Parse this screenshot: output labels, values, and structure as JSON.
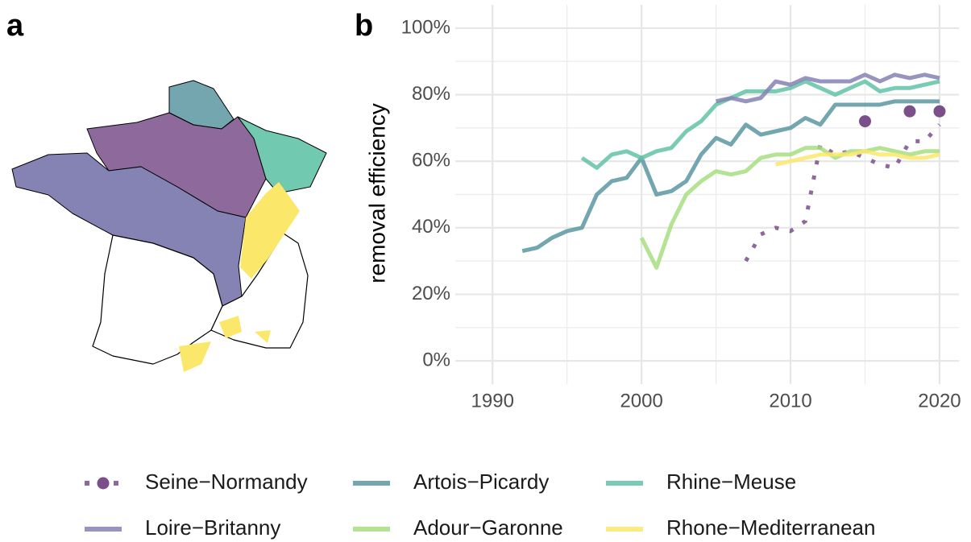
{
  "map_panel": {
    "label": "a"
  },
  "chart_data": {
    "type": "line",
    "panel_label": "b",
    "y_label": "removal efficiency",
    "xlim": [
      1987.5,
      2021.3
    ],
    "xticks": [
      1990,
      2000,
      2010,
      2020
    ],
    "ylim": [
      -7,
      107
    ],
    "yticks": [
      {
        "value": 0,
        "label": "0%"
      },
      {
        "value": 20,
        "label": "20%"
      },
      {
        "value": 40,
        "label": "40%"
      },
      {
        "value": 60,
        "label": "60%"
      },
      {
        "value": 80,
        "label": "80%"
      },
      {
        "value": 100,
        "label": "100%"
      }
    ],
    "grid": true,
    "series": [
      {
        "name": "Seine−Normandy",
        "color": "#7a4f8a",
        "dash": "dotted",
        "x": [
          2007,
          2008,
          2009,
          2010,
          2011,
          2012,
          2013,
          2014,
          2015,
          2016,
          2017,
          2018,
          2019,
          2020
        ],
        "values": [
          30,
          38,
          40,
          39,
          42,
          65,
          62,
          63,
          61,
          59,
          58,
          66,
          66,
          71
        ],
        "point_x": [
          2015,
          2018,
          2020
        ],
        "point_values": [
          72,
          75,
          75
        ]
      },
      {
        "name": "Artois−Picardy",
        "color": "#5a96a0",
        "dash": "solid",
        "x": [
          1992,
          1993,
          1994,
          1995,
          1996,
          1997,
          1998,
          1999,
          2000,
          2001,
          2002,
          2003,
          2004,
          2005,
          2006,
          2007,
          2008,
          2009,
          2010,
          2011,
          2012,
          2013,
          2014,
          2015,
          2016,
          2017,
          2018,
          2019,
          2020
        ],
        "values": [
          33,
          34,
          37,
          39,
          40,
          50,
          54,
          55,
          61,
          50,
          51,
          54,
          62,
          67,
          65,
          71,
          68,
          69,
          70,
          73,
          71,
          77,
          77,
          77,
          77,
          78,
          78,
          78,
          78
        ]
      },
      {
        "name": "Rhine−Meuse",
        "color": "#62c3a6",
        "dash": "solid",
        "x": [
          1996,
          1997,
          1998,
          1999,
          2000,
          2001,
          2002,
          2003,
          2004,
          2005,
          2006,
          2007,
          2008,
          2009,
          2010,
          2011,
          2012,
          2013,
          2014,
          2015,
          2016,
          2017,
          2018,
          2019,
          2020
        ],
        "values": [
          61,
          58,
          62,
          63,
          61,
          63,
          64,
          69,
          72,
          77,
          79,
          81,
          81,
          81,
          82,
          84,
          82,
          80,
          82,
          84,
          81,
          82,
          82,
          83,
          84
        ]
      },
      {
        "name": "Loire−Britanny",
        "color": "#8583b4",
        "dash": "solid",
        "x": [
          2005,
          2006,
          2007,
          2008,
          2009,
          2010,
          2011,
          2012,
          2013,
          2014,
          2015,
          2016,
          2017,
          2018,
          2019,
          2020
        ],
        "values": [
          78,
          79,
          78,
          79,
          84,
          83,
          85,
          84,
          84,
          84,
          86,
          84,
          86,
          85,
          86,
          85
        ]
      },
      {
        "name": "Adour−Garonne",
        "color": "#a6de80",
        "dash": "solid",
        "x": [
          2000,
          2001,
          2002,
          2003,
          2004,
          2005,
          2006,
          2007,
          2008,
          2009,
          2010,
          2011,
          2012,
          2013,
          2014,
          2015,
          2016,
          2017,
          2018,
          2019,
          2020
        ],
        "values": [
          37,
          28,
          41,
          50,
          54,
          57,
          56,
          57,
          61,
          62,
          62,
          64,
          64,
          61,
          63,
          63,
          64,
          63,
          62,
          63,
          63
        ]
      },
      {
        "name": "Rhone−Mediterranean",
        "color": "#fbe86a",
        "dash": "solid",
        "x": [
          2009,
          2010,
          2011,
          2012,
          2013,
          2014,
          2015,
          2016,
          2017,
          2018,
          2019,
          2020
        ],
        "values": [
          59,
          60,
          61,
          62,
          62,
          62,
          63,
          62,
          62,
          61,
          61,
          62
        ]
      }
    ]
  }
}
